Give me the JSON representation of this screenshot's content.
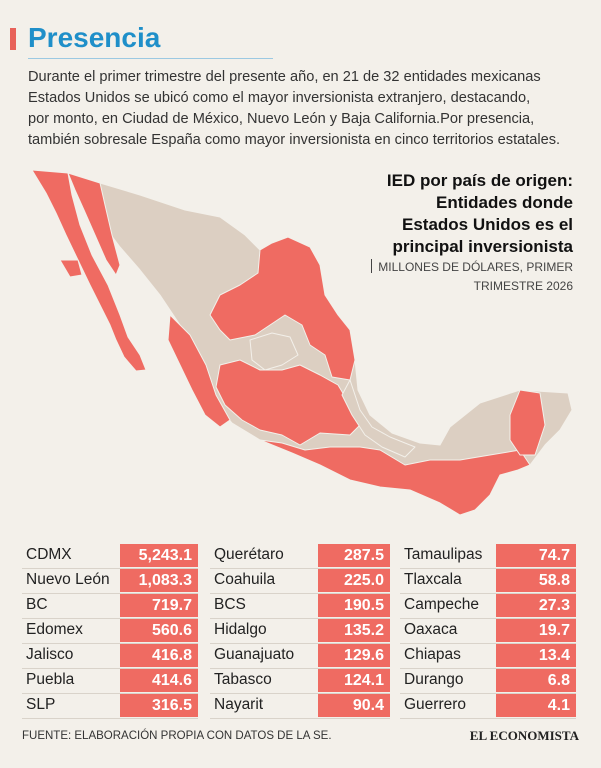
{
  "header": {
    "title": "Presencia",
    "intro": [
      "Durante el primer trimestre del presente año, en 21 de 32 entidades mexicanas",
      "Estados Unidos se ubicó como el mayor inversionista extranjero, destacando,",
      "por monto, en Ciudad de México, Nuevo León y Baja California.Por presencia,",
      "también sobresale España como mayor inversionista en cinco territorios estatales."
    ]
  },
  "map": {
    "title": [
      "IED por país de origen:",
      "Entidades donde",
      "Estados Unidos es el",
      "principal inversionista"
    ],
    "subtitle": [
      "MILLONES DE DÓLARES, PRIMER",
      "TRIMESTRE 2026"
    ]
  },
  "table": {
    "columns": [
      [
        {
          "state": "CDMX",
          "value": "5,243.1"
        },
        {
          "state": "Nuevo León",
          "value": "1,083.3"
        },
        {
          "state": "BC",
          "value": "719.7"
        },
        {
          "state": "Edomex",
          "value": "560.6"
        },
        {
          "state": "Jalisco",
          "value": "416.8"
        },
        {
          "state": "Puebla",
          "value": "414.6"
        },
        {
          "state": "SLP",
          "value": "316.5"
        }
      ],
      [
        {
          "state": "Querétaro",
          "value": "287.5"
        },
        {
          "state": "Coahuila",
          "value": "225.0"
        },
        {
          "state": "BCS",
          "value": "190.5"
        },
        {
          "state": "Hidalgo",
          "value": "135.2"
        },
        {
          "state": "Guanajuato",
          "value": "129.6"
        },
        {
          "state": "Tabasco",
          "value": "124.1"
        },
        {
          "state": "Nayarit",
          "value": "90.4"
        }
      ],
      [
        {
          "state": "Tamaulipas",
          "value": "74.7"
        },
        {
          "state": "Tlaxcala",
          "value": "58.8"
        },
        {
          "state": "Campeche",
          "value": "27.3"
        },
        {
          "state": "Oaxaca",
          "value": "19.7"
        },
        {
          "state": "Chiapas",
          "value": "13.4"
        },
        {
          "state": "Durango",
          "value": "6.8"
        },
        {
          "state": "Guerrero",
          "value": "4.1"
        }
      ]
    ]
  },
  "footer": {
    "source": "FUENTE: ELABORACIÓN PROPIA CON DATOS DE LA SE.",
    "logo": "EL ECONOMISTA"
  }
}
